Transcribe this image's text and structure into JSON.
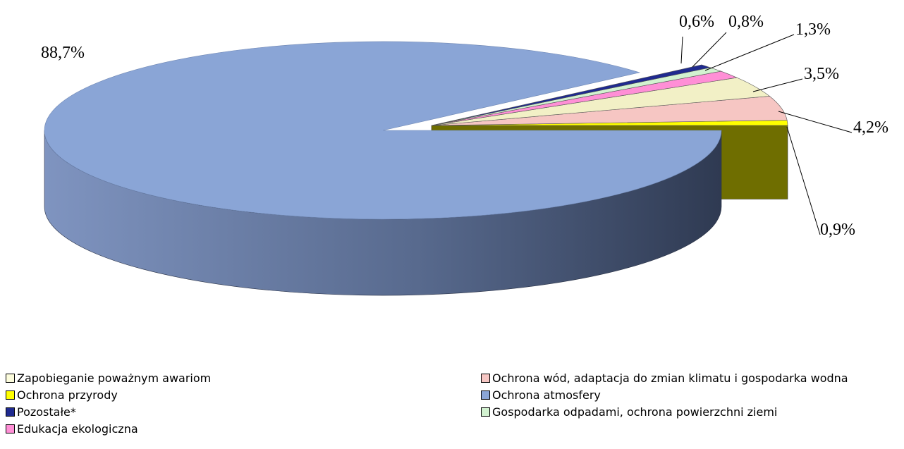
{
  "chart_data": {
    "type": "pie",
    "style": "3d-exploded",
    "slices": [
      {
        "label": "Zapobieganie poważnym awariom",
        "value": 0.9,
        "value_label": "0,9%",
        "color": "#ffff00",
        "side_color": "#6f6e00"
      },
      {
        "label": "Ochrona wód, adaptacja do zmian klimatu i gospodarka wodna",
        "value": 4.2,
        "value_label": "4,2%",
        "color": "#f6c6c3",
        "side_color": "#b38f8c"
      },
      {
        "label": "Edukacja ekologiczna",
        "value": 3.5,
        "value_label": "3,5%",
        "color": "#f2f0c6",
        "side_color": "#b3b08c"
      },
      {
        "label": "Gospodarka odpadami, ochrona powierzchni ziemi",
        "value": 1.3,
        "value_label": "1,3%",
        "color": "#ff8fd6",
        "side_color": "#b3609a"
      },
      {
        "label": "Ochrona przyrody",
        "value": 0.8,
        "value_label": "0,8%",
        "color": "#d2f2d0",
        "side_color": "#8fb38d"
      },
      {
        "label": "Pozostałe*",
        "value": 0.6,
        "value_label": "0,6%",
        "color": "#1f2a8f",
        "side_color": "#111858"
      },
      {
        "label": "Ochrona atmosfery",
        "value": 88.7,
        "value_label": "88,7%",
        "color": "#8aa5d6",
        "side_color": "#5a6f95"
      }
    ],
    "legend": {
      "placement": "bottom",
      "entries": [
        {
          "label": "Zapobieganie poważnym awariom",
          "color": "#fcfcdc"
        },
        {
          "label": "Ochrona przyrody",
          "color": "#ffff00"
        },
        {
          "label": "Pozostałe*",
          "color": "#1f2a8f"
        },
        {
          "label": "Edukacja ekologiczna",
          "color": "#ff8fd6"
        },
        {
          "label": "Ochrona wód, adaptacja do zmian klimatu i gospodarka wodna",
          "color": "#f6c6c3"
        },
        {
          "label": "Ochrona atmosfery",
          "color": "#8aa5d6"
        },
        {
          "label": "Gospodarka odpadami, ochrona powierzchni ziemi",
          "color": "#d2f2d0"
        }
      ]
    }
  }
}
